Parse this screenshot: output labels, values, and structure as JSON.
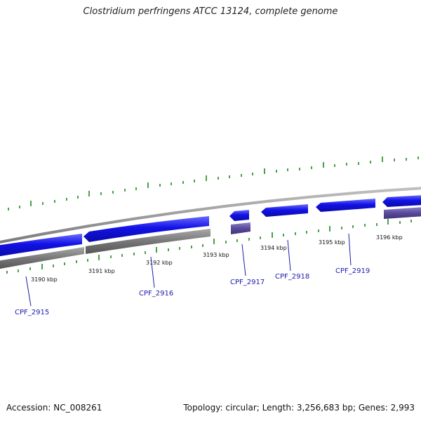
{
  "title": "Clostridium perfringens ATCC 13124, complete genome",
  "footer": {
    "accession": "Accession: NC_008261",
    "summary": "Topology: circular; Length: 3,256,683 bp; Genes: 2,993"
  },
  "scale": {
    "ticks": [
      {
        "label": "3190 kbp"
      },
      {
        "label": "3191 kbp"
      },
      {
        "label": "3192 kbp"
      },
      {
        "label": "3193 kbp"
      },
      {
        "label": "3194 kbp"
      },
      {
        "label": "3195 kbp"
      },
      {
        "label": "3196 kbp"
      }
    ]
  },
  "genes": [
    {
      "name": "CPF_2915"
    },
    {
      "name": "CPF_2916"
    },
    {
      "name": "CPF_2917"
    },
    {
      "name": "CPF_2918"
    },
    {
      "name": "CPF_2919"
    }
  ],
  "colors": {
    "gene_forward": "#1212e6",
    "gene_reverse": "#1212e6",
    "backbone": "#888888",
    "shadow": "#6e6e6e",
    "shadow_purple": "#5a4a9a",
    "tick_green": "#1a8a1a",
    "label_blue": "#1a1ab0"
  }
}
